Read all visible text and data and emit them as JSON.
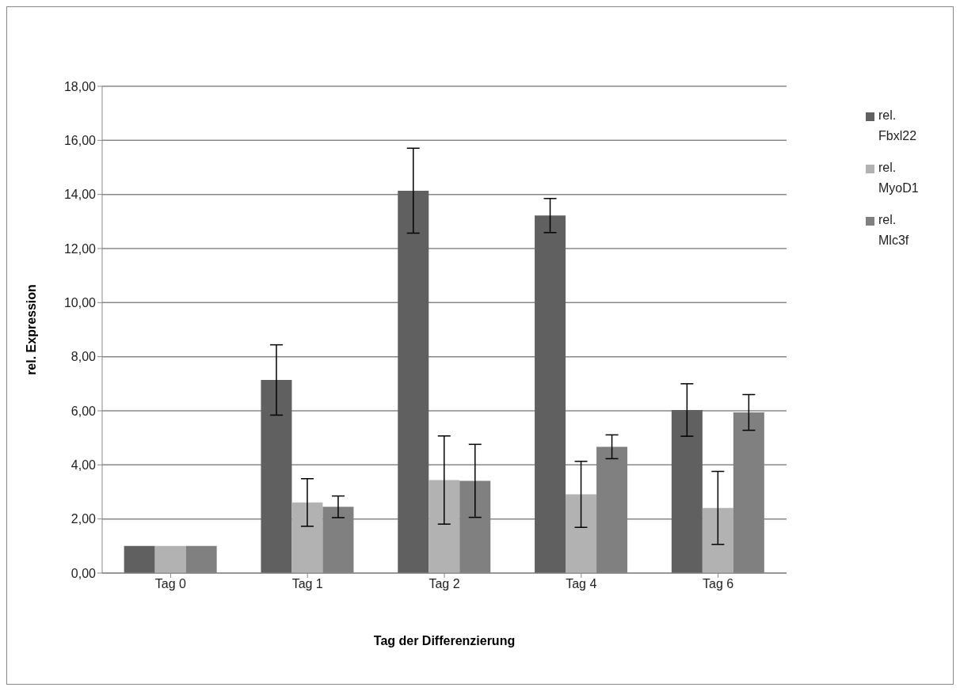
{
  "chart_data": {
    "type": "bar",
    "xlabel": "Tag der Differenzierung",
    "ylabel": "rel. Expression",
    "categories": [
      "Tag 0",
      "Tag 1",
      "Tag 2",
      "Tag 4",
      "Tag 6"
    ],
    "series": [
      {
        "name": "rel. Fbxl22",
        "color": "#606060",
        "values": [
          1.0,
          7.14,
          14.14,
          13.22,
          6.03
        ],
        "errors": [
          0,
          1.3,
          1.57,
          0.63,
          0.97
        ]
      },
      {
        "name": "rel. MyoD1",
        "color": "#b2b2b2",
        "values": [
          1.0,
          2.61,
          3.44,
          2.91,
          2.41
        ],
        "errors": [
          0,
          0.88,
          1.63,
          1.22,
          1.35
        ]
      },
      {
        "name": "rel. Mlc3f",
        "color": "#808080",
        "values": [
          1.0,
          2.45,
          3.41,
          4.67,
          5.94
        ],
        "errors": [
          0,
          0.4,
          1.35,
          0.44,
          0.66
        ]
      }
    ],
    "ylim": [
      0,
      18
    ],
    "yticks": [
      {
        "value": 0,
        "label": "0,00"
      },
      {
        "value": 2,
        "label": "2,00"
      },
      {
        "value": 4,
        "label": "4,00"
      },
      {
        "value": 6,
        "label": "6,00"
      },
      {
        "value": 8,
        "label": "8,00"
      },
      {
        "value": 10,
        "label": "10,00"
      },
      {
        "value": 12,
        "label": "12,00"
      },
      {
        "value": 14,
        "label": "14,00"
      },
      {
        "value": 16,
        "label": "16,00"
      },
      {
        "value": 18,
        "label": "18,00"
      }
    ],
    "grid": "y",
    "legend": "top right"
  }
}
